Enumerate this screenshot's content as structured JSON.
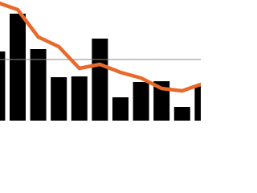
{
  "chart_data": {
    "type": "bar",
    "categories": [
      null,
      null,
      null,
      null,
      null,
      null,
      null,
      null,
      null,
      null,
      null
    ],
    "series": [
      {
        "type": "bar",
        "color": "#000000",
        "values": [
          86,
          133,
          89,
          54,
          55,
          102,
          29,
          48,
          49,
          17,
          43
        ]
      },
      {
        "type": "line",
        "color": "#e8692a",
        "values": [
          147,
          138,
          104,
          92,
          65,
          70,
          60,
          53,
          40,
          37,
          46
        ]
      }
    ],
    "ylim": [
      0,
      150
    ],
    "reference_line": {
      "value": 76,
      "color": "#888888"
    }
  }
}
